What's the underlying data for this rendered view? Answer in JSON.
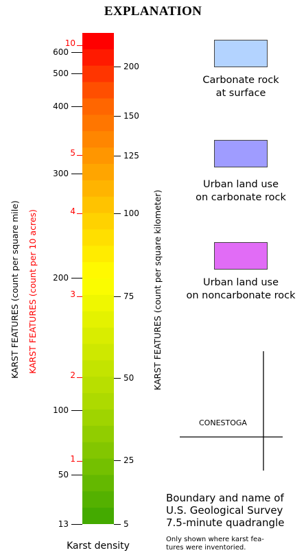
{
  "title": "EXPLANATION",
  "colorbar": {
    "gradient_stops": [
      "#ff0000",
      "#ff6000",
      "#ff9a00",
      "#ffd000",
      "#ffff00",
      "#d8ec00",
      "#b0dc00",
      "#7ec400",
      "#44aa00"
    ],
    "left_ticks": [
      {
        "label": "600",
        "value": 600
      },
      {
        "label": "500",
        "value": 500
      },
      {
        "label": "400",
        "value": 400
      },
      {
        "label": "300",
        "value": 300
      },
      {
        "label": "200",
        "value": 200
      },
      {
        "label": "100",
        "value": 100
      },
      {
        "label": "50",
        "value": 50
      },
      {
        "label": "13",
        "value": 13
      }
    ],
    "red_ticks": [
      {
        "label": "10",
        "value": 10
      },
      {
        "label": "5",
        "value": 5
      },
      {
        "label": "4",
        "value": 4
      },
      {
        "label": "3",
        "value": 3
      },
      {
        "label": "2",
        "value": 2
      },
      {
        "label": "1",
        "value": 1
      }
    ],
    "right_ticks": [
      {
        "label": "200",
        "value": 200
      },
      {
        "label": "150",
        "value": 150
      },
      {
        "label": "125",
        "value": 125
      },
      {
        "label": "100",
        "value": 100
      },
      {
        "label": "75",
        "value": 75
      },
      {
        "label": "50",
        "value": 50
      },
      {
        "label": "25",
        "value": 25
      },
      {
        "label": "5",
        "value": 5
      }
    ],
    "left_axis_label": "KARST FEATURES (count per square mile)",
    "red_axis_label": "KARST FEATURES (count per 10 acres)",
    "right_axis_label": "KARST FEATURES (count per square kilometer)",
    "bottom_label": "Karst density"
  },
  "legend": [
    {
      "color": "#b3d3ff",
      "line1": "Carbonate rock",
      "line2": "at surface"
    },
    {
      "color": "#9f9cff",
      "line1": "Urban land use",
      "line2": "on carbonate rock"
    },
    {
      "color": "#e16cf6",
      "line1": "Urban land use",
      "line2": "on noncarbonate rock"
    }
  ],
  "quadrangle": {
    "name": "CONESTOGA",
    "desc_line1": "Boundary and name of",
    "desc_line2": "U.S. Geological Survey",
    "desc_line3": "7.5-minute quadrangle",
    "note_line1": "Only shown where karst fea-",
    "note_line2": "tures were inventoried."
  }
}
